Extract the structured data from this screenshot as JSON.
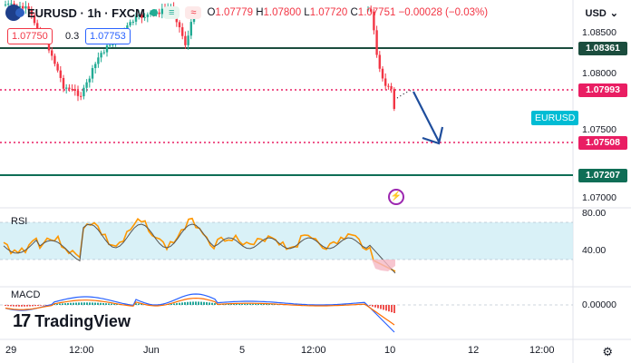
{
  "header": {
    "symbol_line": "EURUSD · 1h · FXCM",
    "badge_green": "≡",
    "badge_red": "≈",
    "ohlc": {
      "o_label": "O",
      "o": "1.07779",
      "h_label": "H",
      "h": "1.07800",
      "l_label": "L",
      "l": "1.07720",
      "c_label": "C",
      "c": "1.07751",
      "change": "−0.00028 (−0.03%)"
    }
  },
  "trade": {
    "sell_price": "1.07750",
    "spread": "0.3",
    "buy_price": "1.07753"
  },
  "price_axis": {
    "currency": "USD",
    "labels": [
      "1.08500",
      "1.08000",
      "1.07500",
      "1.07000"
    ],
    "tags": [
      {
        "text": "1.08361",
        "color": "#1b4d3e"
      },
      {
        "text": "1.07993",
        "color": "#e91e63"
      },
      {
        "text": "1.07508",
        "color": "#e91e63"
      },
      {
        "text": "1.07207",
        "color": "#0f6e56"
      }
    ]
  },
  "symbol_tag": "EURUSD",
  "rsi": {
    "label": "RSI",
    "axis": [
      "80.00",
      "40.00"
    ]
  },
  "macd": {
    "label": "MACD",
    "axis": [
      "0.00000"
    ]
  },
  "time_axis": [
    "29",
    "12:00",
    "Jun",
    "5",
    "12:00",
    "10",
    "12",
    "12:00"
  ],
  "logo_text": "TradingView",
  "colors": {
    "bull": "#22ab94",
    "bear": "#f23645",
    "rsi_line": "#ff9800",
    "rsi_band": "#cfeef5",
    "level_dark": "#1b4d3e",
    "level_red": "#e91e63",
    "arrow": "#1e4d9c"
  }
}
